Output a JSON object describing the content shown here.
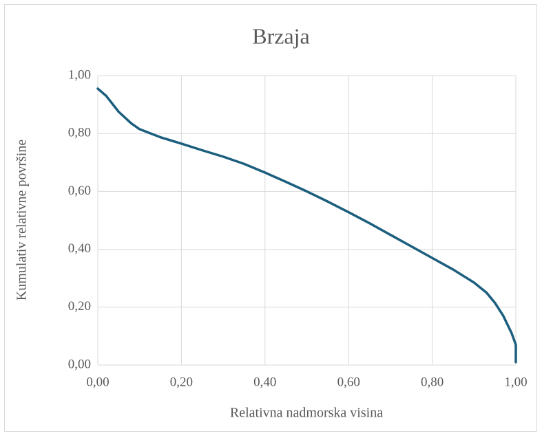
{
  "chart_data": {
    "type": "line",
    "title": "Brzaja",
    "x_label": "Relativna nadmorska visina",
    "y_label": "Kumulativ relativne površine",
    "x": [
      0,
      0.02,
      0.05,
      0.08,
      0.1,
      0.15,
      0.2,
      0.25,
      0.3,
      0.35,
      0.4,
      0.45,
      0.5,
      0.55,
      0.6,
      0.65,
      0.7,
      0.75,
      0.8,
      0.85,
      0.9,
      0.93,
      0.95,
      0.97,
      0.99,
      1.0,
      1.0
    ],
    "series": [
      {
        "color": "#1b5e7e",
        "values": [
          0.955,
          0.93,
          0.875,
          0.835,
          0.815,
          0.787,
          0.765,
          0.742,
          0.72,
          0.695,
          0.665,
          0.633,
          0.6,
          0.565,
          0.528,
          0.49,
          0.45,
          0.41,
          0.37,
          0.33,
          0.285,
          0.25,
          0.215,
          0.17,
          0.11,
          0.07,
          0.01
        ]
      }
    ],
    "xlim": [
      0,
      1
    ],
    "ylim": [
      0,
      1
    ],
    "xticks": [
      {
        "value": 0,
        "label": "0,00"
      },
      {
        "value": 0.2,
        "label": "0,20"
      },
      {
        "value": 0.4,
        "label": "0,40"
      },
      {
        "value": 0.6,
        "label": "0,60"
      },
      {
        "value": 0.8,
        "label": "0,80"
      },
      {
        "value": 1,
        "label": "1,00"
      }
    ],
    "yticks": [
      {
        "value": 0,
        "label": "0,00"
      },
      {
        "value": 0.2,
        "label": "0,20"
      },
      {
        "value": 0.4,
        "label": "0,40"
      },
      {
        "value": 0.6,
        "label": "0,60"
      },
      {
        "value": 0.8,
        "label": "0,80"
      },
      {
        "value": 1,
        "label": "1,00"
      }
    ],
    "grid": true
  }
}
